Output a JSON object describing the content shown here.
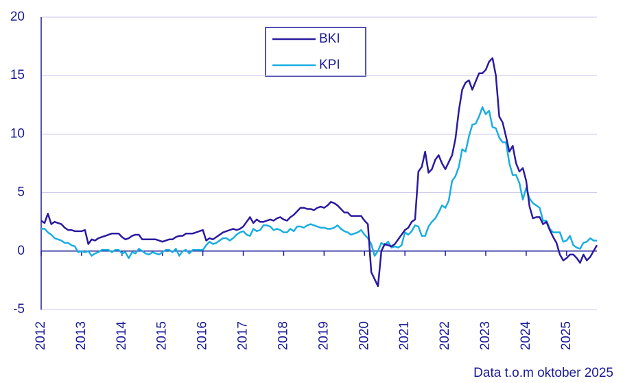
{
  "chart_data": {
    "type": "line",
    "footnote": "Data t.o.m oktober 2025",
    "categories": [
      "2012",
      null,
      null,
      null,
      null,
      null,
      null,
      null,
      null,
      null,
      null,
      null,
      "2013",
      null,
      null,
      null,
      null,
      null,
      null,
      null,
      null,
      null,
      null,
      null,
      "2014",
      null,
      null,
      null,
      null,
      null,
      null,
      null,
      null,
      null,
      null,
      null,
      "2015",
      null,
      null,
      null,
      null,
      null,
      null,
      null,
      null,
      null,
      null,
      null,
      "2016",
      null,
      null,
      null,
      null,
      null,
      null,
      null,
      null,
      null,
      null,
      null,
      "2017",
      null,
      null,
      null,
      null,
      null,
      null,
      null,
      null,
      null,
      null,
      null,
      "2018",
      null,
      null,
      null,
      null,
      null,
      null,
      null,
      null,
      null,
      null,
      null,
      "2019",
      null,
      null,
      null,
      null,
      null,
      null,
      null,
      null,
      null,
      null,
      null,
      "2020",
      null,
      null,
      null,
      null,
      null,
      null,
      null,
      null,
      null,
      null,
      null,
      "2021",
      null,
      null,
      null,
      null,
      null,
      null,
      null,
      null,
      null,
      null,
      null,
      "2022",
      null,
      null,
      null,
      null,
      null,
      null,
      null,
      null,
      null,
      null,
      null,
      "2023",
      null,
      null,
      null,
      null,
      null,
      null,
      null,
      null,
      null,
      null,
      null,
      "2024",
      null,
      null,
      null,
      null,
      null,
      null,
      null,
      null,
      null,
      null,
      null,
      "2025",
      null,
      null,
      null,
      null,
      null,
      null,
      null,
      null,
      null
    ],
    "series": [
      {
        "name": "BKI",
        "color": "#2a1aa0",
        "values": [
          2.6,
          2.4,
          3.2,
          2.3,
          2.5,
          2.4,
          2.3,
          2.0,
          1.8,
          1.8,
          1.7,
          1.7,
          1.7,
          1.8,
          0.6,
          1.0,
          0.9,
          1.1,
          1.2,
          1.3,
          1.4,
          1.5,
          1.5,
          1.5,
          1.2,
          1.0,
          1.1,
          1.3,
          1.4,
          1.4,
          1.0,
          1.0,
          1.0,
          1.0,
          1.0,
          0.9,
          0.8,
          0.9,
          1.0,
          1.0,
          1.2,
          1.3,
          1.3,
          1.5,
          1.5,
          1.5,
          1.6,
          1.7,
          1.8,
          0.9,
          1.1,
          1.0,
          1.2,
          1.4,
          1.6,
          1.7,
          1.8,
          1.9,
          1.8,
          1.9,
          2.1,
          2.5,
          2.9,
          2.4,
          2.7,
          2.5,
          2.5,
          2.6,
          2.7,
          2.6,
          2.8,
          2.9,
          2.7,
          2.6,
          2.9,
          3.1,
          3.4,
          3.7,
          3.7,
          3.6,
          3.6,
          3.5,
          3.7,
          3.8,
          3.7,
          3.9,
          4.2,
          4.1,
          3.9,
          3.6,
          3.3,
          3.3,
          3.0,
          3.0,
          3.0,
          3.0,
          2.6,
          2.3,
          -1.8,
          -2.4,
          -3.0,
          0.0,
          0.6,
          0.5,
          0.4,
          0.6,
          1.0,
          1.4,
          1.8,
          2.0,
          2.5,
          2.7,
          6.8,
          7.2,
          8.5,
          6.7,
          7.0,
          7.8,
          8.2,
          7.5,
          7.0,
          7.6,
          8.2,
          9.6,
          12.0,
          13.8,
          14.4,
          14.6,
          13.8,
          14.5,
          15.2,
          15.2,
          15.5,
          16.2,
          16.5,
          15.0,
          11.5,
          11.0,
          9.8,
          8.5,
          9.0,
          7.5,
          6.8,
          7.1,
          6.0,
          3.8,
          2.8,
          2.9,
          2.9,
          2.3,
          2.5,
          1.8,
          1.2,
          0.7,
          -0.3,
          -0.8,
          -0.6,
          -0.3,
          -0.3,
          -0.6,
          -1.0,
          -0.3,
          -0.8,
          -0.5,
          0.0,
          0.5
        ]
      },
      {
        "name": "KPI",
        "color": "#1aaee2",
        "values": [
          1.9,
          1.9,
          1.6,
          1.4,
          1.1,
          1.0,
          0.9,
          0.7,
          0.7,
          0.5,
          0.4,
          -0.1,
          0.0,
          -0.1,
          0.0,
          -0.4,
          -0.2,
          -0.1,
          0.1,
          0.1,
          0.1,
          -0.1,
          0.1,
          0.1,
          -0.2,
          -0.1,
          -0.6,
          -0.1,
          -0.2,
          0.2,
          0.0,
          -0.2,
          -0.3,
          -0.1,
          -0.2,
          -0.3,
          -0.1,
          0.1,
          0.1,
          -0.1,
          0.2,
          -0.4,
          0.0,
          0.1,
          -0.2,
          0.1,
          0.1,
          0.1,
          0.1,
          0.5,
          0.8,
          0.6,
          0.7,
          0.9,
          1.1,
          1.1,
          0.9,
          1.1,
          1.4,
          1.6,
          1.7,
          1.4,
          1.3,
          1.9,
          1.7,
          1.8,
          2.2,
          2.2,
          2.1,
          1.8,
          1.9,
          1.8,
          1.6,
          1.6,
          1.9,
          1.7,
          2.1,
          2.1,
          2.0,
          2.2,
          2.3,
          2.2,
          2.1,
          2.0,
          2.0,
          1.9,
          1.9,
          2.0,
          2.2,
          1.9,
          1.7,
          1.6,
          1.4,
          1.5,
          1.6,
          1.8,
          1.4,
          1.1,
          0.6,
          -0.4,
          0.0,
          0.7,
          0.5,
          0.8,
          0.3,
          0.4,
          0.3,
          0.5,
          1.6,
          1.4,
          1.7,
          2.2,
          2.1,
          1.3,
          1.3,
          2.1,
          2.5,
          2.8,
          3.3,
          3.9,
          3.7,
          4.3,
          6.0,
          6.4,
          7.2,
          8.7,
          8.5,
          9.8,
          10.8,
          10.9,
          11.5,
          12.3,
          11.7,
          12.0,
          10.6,
          10.5,
          9.7,
          9.3,
          9.3,
          7.5,
          6.5,
          6.5,
          5.8,
          4.4,
          5.4,
          4.5,
          4.1,
          3.9,
          3.7,
          2.6,
          2.6,
          1.9,
          1.6,
          1.6,
          1.6,
          0.8,
          0.9,
          1.3,
          0.5,
          0.3,
          0.2,
          0.7,
          0.8,
          1.1,
          0.9,
          0.9
        ]
      }
    ],
    "ylim": [
      -5,
      20
    ],
    "yticks": [
      -5,
      0,
      5,
      10,
      15,
      20
    ],
    "grid": true
  }
}
